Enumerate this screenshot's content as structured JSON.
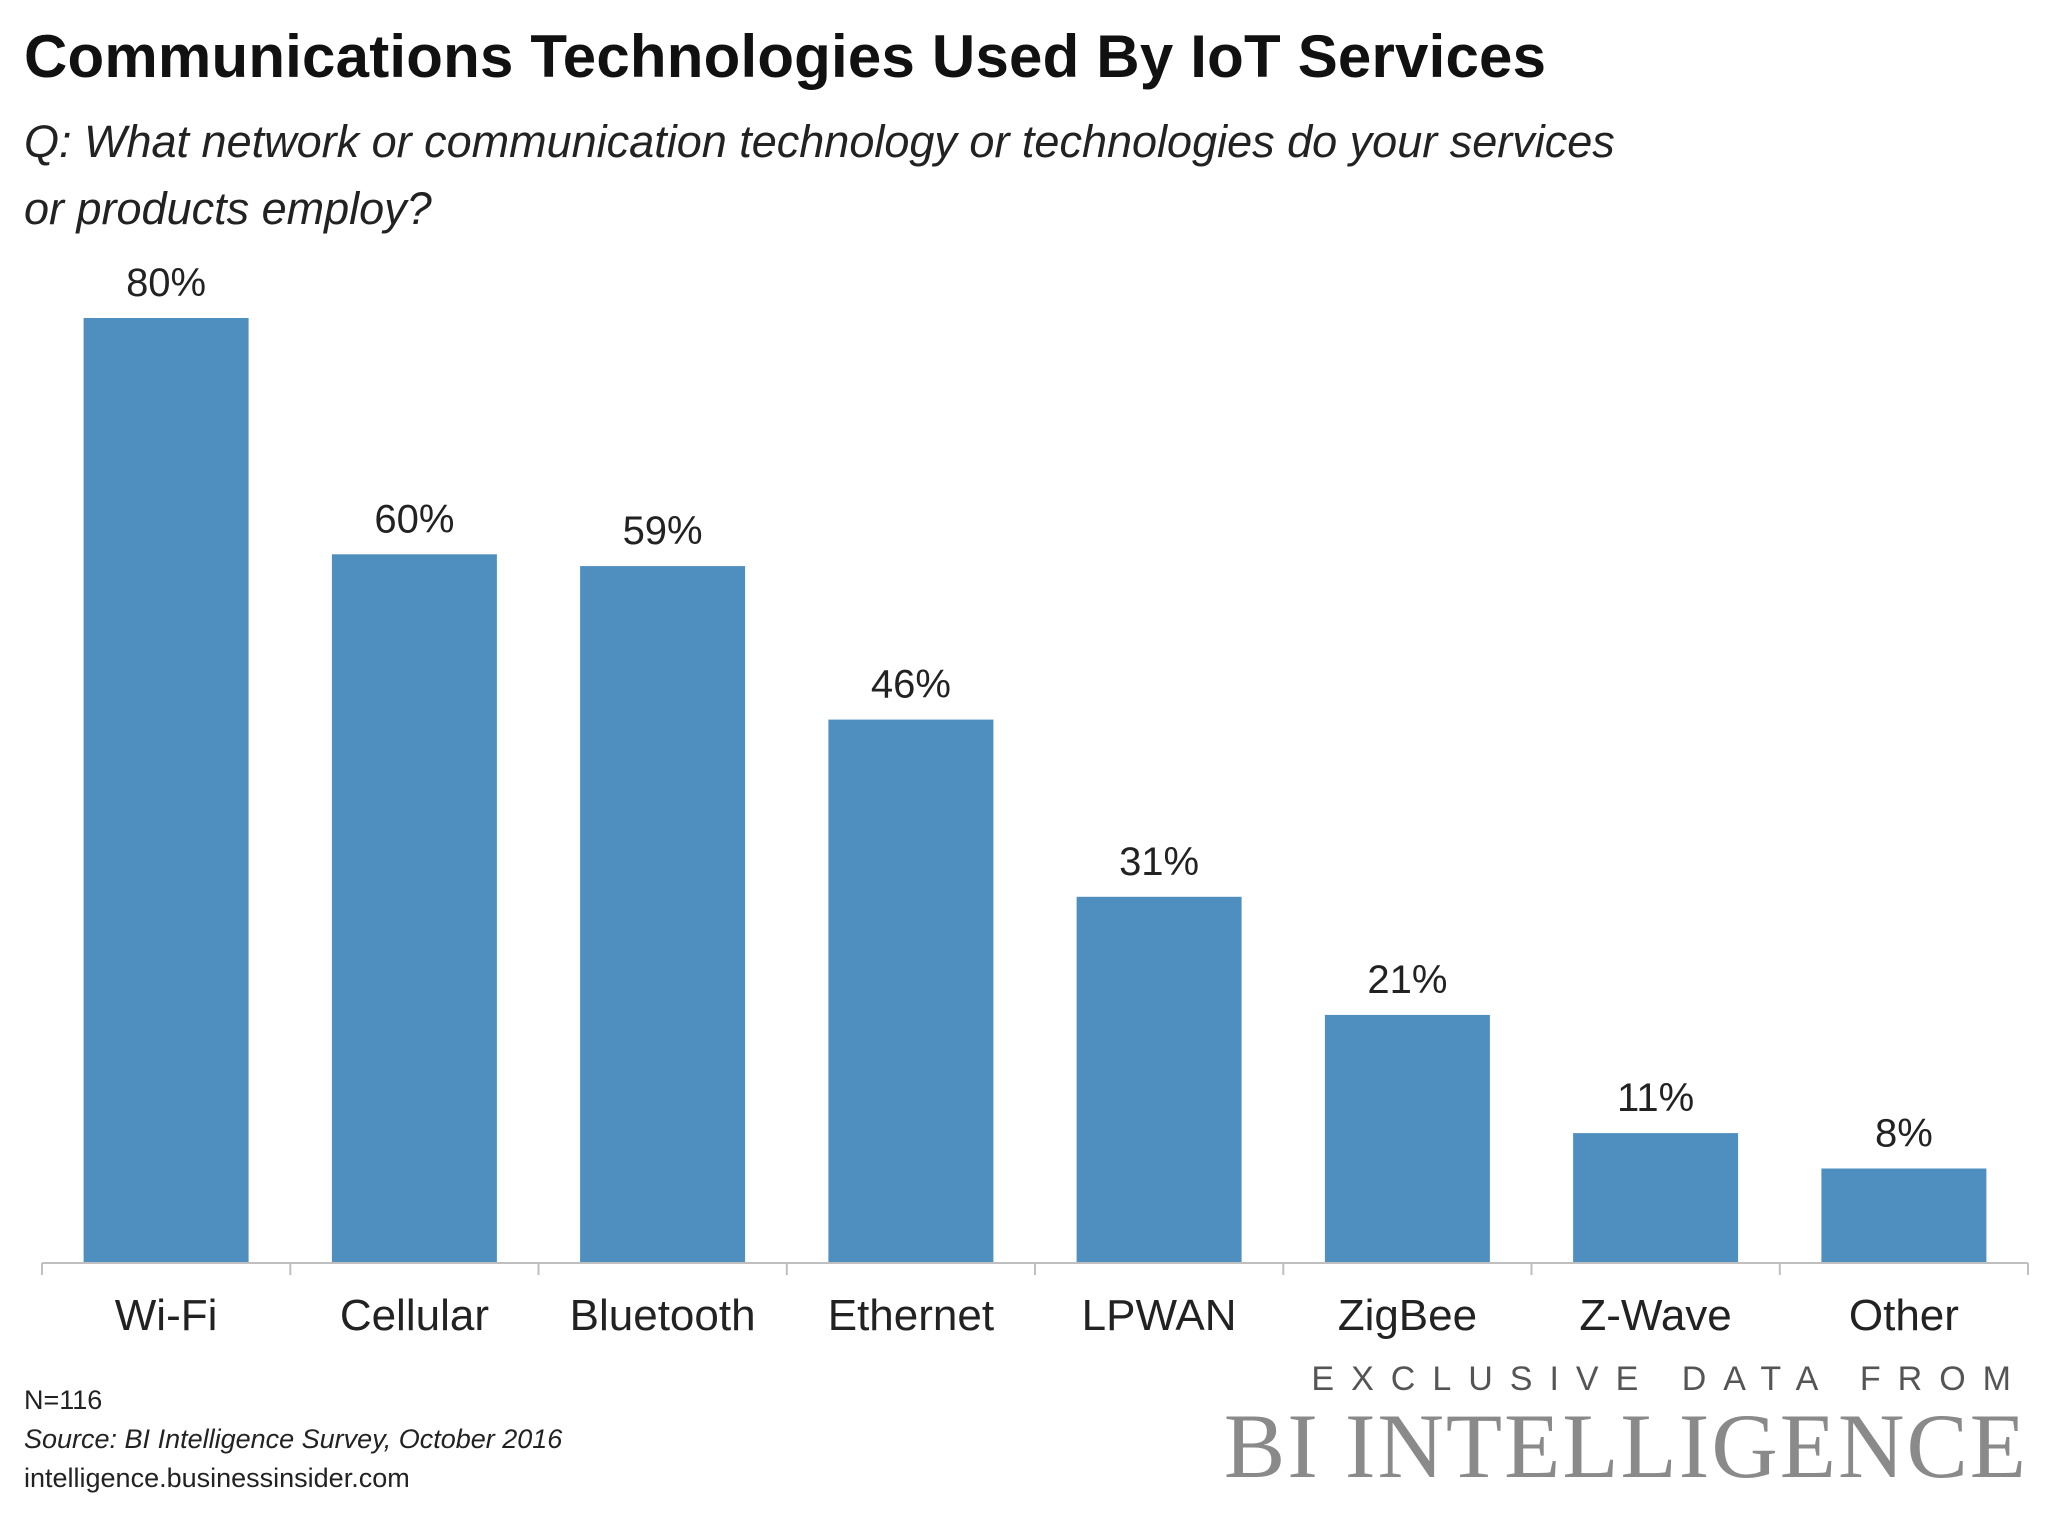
{
  "chart_data": {
    "type": "bar",
    "title": "Communications Technologies Used By IoT Services",
    "subtitle": "Q: What network or communication technology or technologies do your services or products employ?",
    "categories": [
      "Wi-Fi",
      "Cellular",
      "Bluetooth",
      "Ethernet",
      "LPWAN",
      "ZigBee",
      "Z-Wave",
      "Other"
    ],
    "values": [
      80,
      60,
      59,
      46,
      31,
      21,
      11,
      8
    ],
    "value_labels": [
      "80%",
      "60%",
      "59%",
      "46%",
      "31%",
      "21%",
      "11%",
      "8%"
    ],
    "unit": "%",
    "xlabel": "",
    "ylabel": "",
    "ylim": [
      0,
      80
    ],
    "grid": false,
    "bar_color": "#4f8fc0",
    "axis_color": "#bfbfbf"
  },
  "footer": {
    "n": "N=116",
    "source": "Source: BI Intelligence Survey, October 2016",
    "url": "intelligence.businessinsider.com"
  },
  "branding": {
    "tagline": "EXCLUSIVE DATA FROM",
    "logo": "BI INTELLIGENCE"
  }
}
